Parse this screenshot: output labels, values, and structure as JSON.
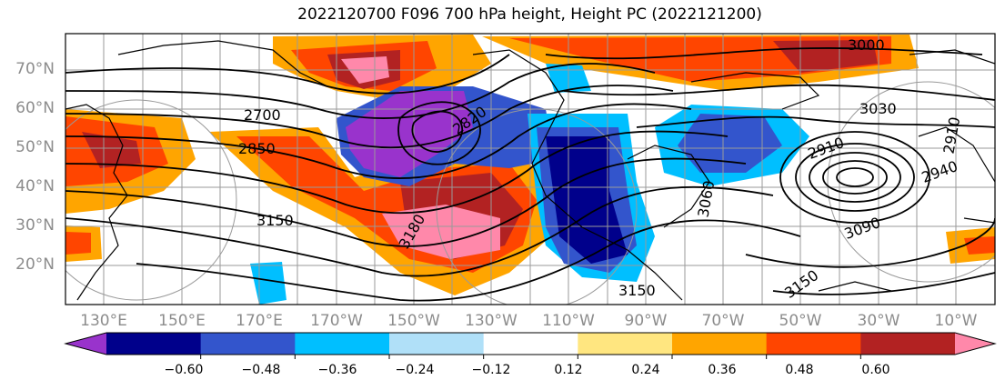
{
  "title": "2022120700 F096 700 hPa height, Height PC (2022121200)",
  "map": {
    "latitude_labels": [
      "70°N",
      "60°N",
      "50°N",
      "40°N",
      "30°N",
      "20°N"
    ],
    "longitude_labels": [
      "130°E",
      "150°E",
      "170°E",
      "170°W",
      "150°W",
      "130°W",
      "110°W",
      "90°W",
      "70°W",
      "50°W",
      "30°W",
      "10°W"
    ],
    "contour_labels": [
      "2700",
      "2850",
      "3150",
      "3180",
      "3000",
      "3030",
      "2910",
      "2940",
      "3090",
      "3150",
      "2820",
      "2910",
      "3060",
      "3150"
    ]
  },
  "colorbar": {
    "tick_labels": [
      "−0.60",
      "−0.48",
      "−0.36",
      "−0.24",
      "−0.12",
      "0.12",
      "0.24",
      "0.36",
      "0.48",
      "0.60"
    ],
    "colors": [
      "#9933cc",
      "#00008b",
      "#3355cc",
      "#00bfff",
      "#b0e0f8",
      "#ffffff",
      "#ffe680",
      "#ffa500",
      "#ff4500",
      "#b22222",
      "#ff88aa"
    ]
  },
  "colors": {
    "coast": "#000000",
    "grid": "#9a9a9a",
    "contour": "#000000"
  }
}
